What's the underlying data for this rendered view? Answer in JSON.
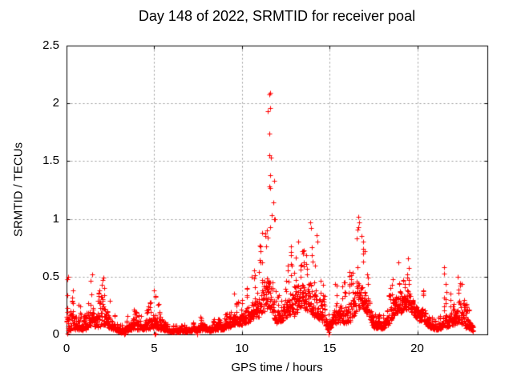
{
  "chart_data": {
    "type": "scatter",
    "title": "Day 148 of 2022, SRMTID for receiver poal",
    "xlabel": "GPS time / hours",
    "ylabel": "SRMTID / TECUs",
    "xlim": [
      0,
      24
    ],
    "ylim": [
      0,
      2.5
    ],
    "xticks": [
      "0",
      "5",
      "10",
      "15",
      "20"
    ],
    "xtick_values": [
      0,
      5,
      10,
      15,
      20
    ],
    "yticks": [
      "0",
      "0.5",
      "1",
      "1.5",
      "2",
      "2.5"
    ],
    "ytick_values": [
      0,
      0.5,
      1,
      1.5,
      2,
      2.5
    ],
    "grid": true,
    "legend": "none",
    "marker": "plus",
    "marker_color": "#ff0000",
    "grid_color": "#999999",
    "axis_color": "#000000",
    "background": "#ffffff",
    "x_end_of_data": 23.2,
    "envelope_description": "anchor points [hour, band_low_TECU, band_high_TECU] tracing the dense scatter band and its spike tops",
    "envelope": [
      [
        0.0,
        0.02,
        0.5
      ],
      [
        0.2,
        0.03,
        0.52
      ],
      [
        0.4,
        0.04,
        0.4
      ],
      [
        0.55,
        0.04,
        0.35
      ],
      [
        0.75,
        0.04,
        0.25
      ],
      [
        0.95,
        0.03,
        0.15
      ],
      [
        1.15,
        0.05,
        0.2
      ],
      [
        1.3,
        0.07,
        0.4
      ],
      [
        1.45,
        0.08,
        0.52
      ],
      [
        1.6,
        0.07,
        0.38
      ],
      [
        1.75,
        0.06,
        0.3
      ],
      [
        1.9,
        0.07,
        0.42
      ],
      [
        2.1,
        0.08,
        0.5
      ],
      [
        2.3,
        0.07,
        0.45
      ],
      [
        2.5,
        0.05,
        0.3
      ],
      [
        2.7,
        0.04,
        0.18
      ],
      [
        2.9,
        0.03,
        0.1
      ],
      [
        3.1,
        0.01,
        0.08
      ],
      [
        3.3,
        0.02,
        0.1
      ],
      [
        3.5,
        0.03,
        0.18
      ],
      [
        3.7,
        0.04,
        0.25
      ],
      [
        3.9,
        0.05,
        0.31
      ],
      [
        4.1,
        0.04,
        0.2
      ],
      [
        4.3,
        0.04,
        0.14
      ],
      [
        4.5,
        0.04,
        0.2
      ],
      [
        4.75,
        0.05,
        0.28
      ],
      [
        5.0,
        0.06,
        0.37
      ],
      [
        5.2,
        0.05,
        0.3
      ],
      [
        5.45,
        0.04,
        0.15
      ],
      [
        5.7,
        0.03,
        0.09
      ],
      [
        6.0,
        0.02,
        0.08
      ],
      [
        6.4,
        0.02,
        0.08
      ],
      [
        6.8,
        0.02,
        0.09
      ],
      [
        7.2,
        0.03,
        0.1
      ],
      [
        7.55,
        0.03,
        0.13
      ],
      [
        7.8,
        0.04,
        0.2
      ],
      [
        8.05,
        0.03,
        0.12
      ],
      [
        8.3,
        0.03,
        0.1
      ],
      [
        8.55,
        0.04,
        0.17
      ],
      [
        8.8,
        0.04,
        0.13
      ],
      [
        9.0,
        0.04,
        0.16
      ],
      [
        9.3,
        0.06,
        0.25
      ],
      [
        9.55,
        0.08,
        0.33
      ],
      [
        9.8,
        0.08,
        0.28
      ],
      [
        10.0,
        0.08,
        0.3
      ],
      [
        10.3,
        0.1,
        0.45
      ],
      [
        10.55,
        0.12,
        0.5
      ],
      [
        10.75,
        0.15,
        0.65
      ],
      [
        10.95,
        0.15,
        0.75
      ],
      [
        11.15,
        0.18,
        0.88
      ],
      [
        11.35,
        0.2,
        0.9
      ],
      [
        11.5,
        0.25,
        0.92
      ],
      [
        11.65,
        0.2,
        0.85
      ],
      [
        11.8,
        0.15,
        0.55
      ],
      [
        11.95,
        0.1,
        0.4
      ],
      [
        12.15,
        0.1,
        0.35
      ],
      [
        12.35,
        0.12,
        0.45
      ],
      [
        12.55,
        0.15,
        0.55
      ],
      [
        12.8,
        0.18,
        0.75
      ],
      [
        13.0,
        0.15,
        0.6
      ],
      [
        13.2,
        0.2,
        0.8
      ],
      [
        13.45,
        0.25,
        0.72
      ],
      [
        13.7,
        0.2,
        0.78
      ],
      [
        13.9,
        0.2,
        0.95
      ],
      [
        14.1,
        0.15,
        0.68
      ],
      [
        14.3,
        0.15,
        0.86
      ],
      [
        14.5,
        0.12,
        0.6
      ],
      [
        14.7,
        0.08,
        0.35
      ],
      [
        14.9,
        0.04,
        0.18
      ],
      [
        15.1,
        0.06,
        0.25
      ],
      [
        15.3,
        0.1,
        0.45
      ],
      [
        15.55,
        0.1,
        0.42
      ],
      [
        15.8,
        0.1,
        0.48
      ],
      [
        16.05,
        0.1,
        0.55
      ],
      [
        16.25,
        0.12,
        0.55
      ],
      [
        16.45,
        0.18,
        0.75
      ],
      [
        16.65,
        0.22,
        1.0
      ],
      [
        16.85,
        0.25,
        0.85
      ],
      [
        17.05,
        0.2,
        0.7
      ],
      [
        17.25,
        0.15,
        0.55
      ],
      [
        17.5,
        0.06,
        0.22
      ],
      [
        17.75,
        0.05,
        0.16
      ],
      [
        18.05,
        0.05,
        0.2
      ],
      [
        18.3,
        0.07,
        0.3
      ],
      [
        18.5,
        0.12,
        0.45
      ],
      [
        18.75,
        0.18,
        0.62
      ],
      [
        19.0,
        0.18,
        0.55
      ],
      [
        19.2,
        0.2,
        0.5
      ],
      [
        19.45,
        0.22,
        0.66
      ],
      [
        19.65,
        0.2,
        0.55
      ],
      [
        19.9,
        0.15,
        0.45
      ],
      [
        20.1,
        0.12,
        0.35
      ],
      [
        20.35,
        0.12,
        0.46
      ],
      [
        20.55,
        0.08,
        0.3
      ],
      [
        20.8,
        0.05,
        0.16
      ],
      [
        21.1,
        0.04,
        0.12
      ],
      [
        21.4,
        0.05,
        0.2
      ],
      [
        21.55,
        0.08,
        0.58
      ],
      [
        21.7,
        0.06,
        0.3
      ],
      [
        21.9,
        0.08,
        0.36
      ],
      [
        22.1,
        0.08,
        0.3
      ],
      [
        22.3,
        0.1,
        0.5
      ],
      [
        22.5,
        0.1,
        0.46
      ],
      [
        22.7,
        0.06,
        0.3
      ],
      [
        22.9,
        0.05,
        0.26
      ],
      [
        23.05,
        0.04,
        0.2
      ],
      [
        23.2,
        0.03,
        0.14
      ]
    ],
    "outlier_points": [
      [
        0.05,
        0.48
      ],
      [
        0.06,
        0.01
      ],
      [
        0.08,
        0.5
      ],
      [
        1.44,
        0.52
      ],
      [
        2.12,
        0.49
      ],
      [
        3.28,
        0.0
      ],
      [
        3.33,
        0.01
      ],
      [
        5.0,
        0.38
      ],
      [
        5.03,
        0.0
      ],
      [
        5.08,
        0.01
      ],
      [
        7.45,
        0.0
      ],
      [
        9.56,
        0.35
      ],
      [
        10.56,
        0.5
      ],
      [
        11.38,
        0.76
      ],
      [
        11.44,
        0.9
      ],
      [
        11.48,
        0.84
      ],
      [
        11.49,
        1.93
      ],
      [
        11.55,
        2.08
      ],
      [
        11.55,
        1.74
      ],
      [
        11.55,
        1.28
      ],
      [
        11.57,
        1.55
      ],
      [
        11.59,
        0.93
      ],
      [
        11.6,
        1.96
      ],
      [
        11.6,
        1.38
      ],
      [
        11.63,
        2.09
      ],
      [
        11.63,
        1.27
      ],
      [
        11.66,
        1.53
      ],
      [
        11.69,
        1.03
      ],
      [
        11.78,
        1.14
      ],
      [
        11.82,
        1.33
      ],
      [
        11.83,
        1.0
      ],
      [
        11.9,
        1.0
      ],
      [
        12.82,
        0.76
      ],
      [
        13.22,
        0.8
      ],
      [
        13.48,
        0.72
      ],
      [
        13.5,
        0.7
      ],
      [
        13.9,
        0.97
      ],
      [
        13.93,
        0.92
      ],
      [
        14.28,
        0.86
      ],
      [
        14.32,
        0.8
      ],
      [
        14.93,
        0.02
      ],
      [
        14.96,
        0.0
      ],
      [
        16.62,
        0.93
      ],
      [
        16.66,
        1.02
      ],
      [
        16.7,
        0.97
      ],
      [
        16.8,
        0.85
      ],
      [
        17.0,
        0.72
      ],
      [
        18.92,
        0.62
      ],
      [
        19.46,
        0.66
      ],
      [
        21.55,
        0.58
      ],
      [
        22.32,
        0.5
      ]
    ]
  }
}
